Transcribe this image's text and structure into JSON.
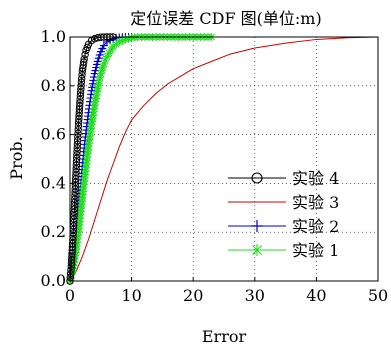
{
  "chart_data": {
    "type": "line",
    "title": "定位误差 CDF 图(单位:m)",
    "xlabel": "Error",
    "ylabel": "Prob.",
    "xlim": [
      0,
      50
    ],
    "ylim": [
      0,
      1
    ],
    "x_ticks": [
      "0",
      "10",
      "20",
      "30",
      "40",
      "50"
    ],
    "y_ticks": [
      "0.0",
      "0.2",
      "0.4",
      "0.6",
      "0.8",
      "1.0"
    ],
    "grid": true,
    "legend_position": "bottom-right",
    "series": [
      {
        "name": "实验 4",
        "color": "#000000",
        "marker": "circle",
        "points": [
          [
            0,
            0
          ],
          [
            0.2,
            0.06
          ],
          [
            0.4,
            0.14
          ],
          [
            0.6,
            0.24
          ],
          [
            0.8,
            0.35
          ],
          [
            1.0,
            0.46
          ],
          [
            1.2,
            0.56
          ],
          [
            1.4,
            0.65
          ],
          [
            1.6,
            0.73
          ],
          [
            1.8,
            0.8
          ],
          [
            2.0,
            0.86
          ],
          [
            2.3,
            0.91
          ],
          [
            2.6,
            0.945
          ],
          [
            3.0,
            0.97
          ],
          [
            3.5,
            0.985
          ],
          [
            4.0,
            0.993
          ],
          [
            4.5,
            0.997
          ],
          [
            5.0,
            0.999
          ],
          [
            6.0,
            1.0
          ],
          [
            7.0,
            1.0
          ]
        ]
      },
      {
        "name": "实验 3",
        "color": "#cc0000",
        "marker": "none",
        "points": [
          [
            0,
            0
          ],
          [
            1,
            0.04
          ],
          [
            2,
            0.1
          ],
          [
            3,
            0.17
          ],
          [
            4,
            0.25
          ],
          [
            5,
            0.33
          ],
          [
            6,
            0.41
          ],
          [
            7,
            0.48
          ],
          [
            8,
            0.55
          ],
          [
            9,
            0.61
          ],
          [
            10,
            0.66
          ],
          [
            12,
            0.72
          ],
          [
            14,
            0.77
          ],
          [
            16,
            0.81
          ],
          [
            18,
            0.84
          ],
          [
            20,
            0.87
          ],
          [
            23,
            0.9
          ],
          [
            26,
            0.93
          ],
          [
            30,
            0.955
          ],
          [
            35,
            0.975
          ],
          [
            40,
            0.99
          ],
          [
            45,
            0.997
          ],
          [
            50,
            1.0
          ]
        ]
      },
      {
        "name": "实验 2",
        "color": "#0000cc",
        "marker": "plus",
        "points": [
          [
            0,
            0
          ],
          [
            0.5,
            0.08
          ],
          [
            1,
            0.2
          ],
          [
            1.5,
            0.33
          ],
          [
            2,
            0.47
          ],
          [
            2.5,
            0.59
          ],
          [
            3,
            0.69
          ],
          [
            3.5,
            0.78
          ],
          [
            4,
            0.85
          ],
          [
            4.5,
            0.9
          ],
          [
            5,
            0.94
          ],
          [
            5.5,
            0.965
          ],
          [
            6,
            0.98
          ],
          [
            7,
            0.993
          ],
          [
            8,
            0.998
          ],
          [
            9,
            1.0
          ],
          [
            10,
            1.0
          ]
        ]
      },
      {
        "name": "实验 1",
        "color": "#22dd22",
        "marker": "star",
        "points": [
          [
            0,
            0
          ],
          [
            0.5,
            0.05
          ],
          [
            1,
            0.13
          ],
          [
            1.5,
            0.23
          ],
          [
            2,
            0.34
          ],
          [
            2.5,
            0.45
          ],
          [
            3,
            0.55
          ],
          [
            3.5,
            0.64
          ],
          [
            4,
            0.72
          ],
          [
            4.5,
            0.79
          ],
          [
            5,
            0.85
          ],
          [
            5.5,
            0.89
          ],
          [
            6,
            0.92
          ],
          [
            7,
            0.96
          ],
          [
            8,
            0.98
          ],
          [
            9,
            0.99
          ],
          [
            10,
            0.997
          ],
          [
            11,
            1.0
          ],
          [
            14,
            1.0
          ],
          [
            17,
            1.0
          ],
          [
            20,
            1.0
          ],
          [
            23,
            1.0
          ]
        ]
      }
    ]
  }
}
